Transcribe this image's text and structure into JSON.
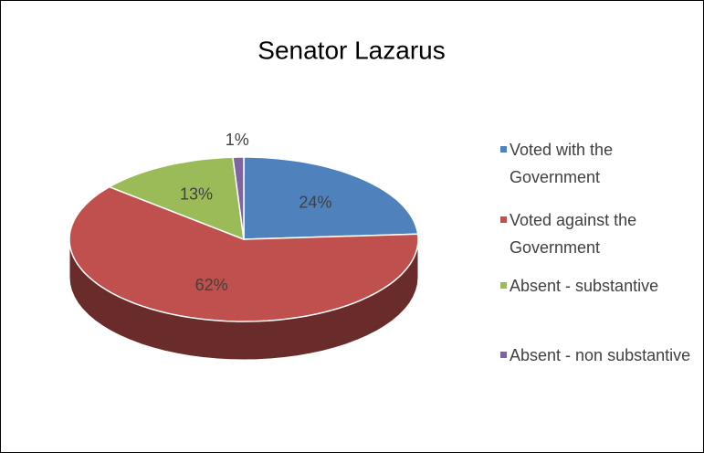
{
  "chart_data": {
    "type": "pie",
    "title": "Senator Lazarus",
    "categories": [
      "Voted with the Government",
      "Voted against the Government",
      "Absent - substantive",
      "Absent - non substantive"
    ],
    "values": [
      24,
      62,
      13,
      1
    ],
    "value_labels": [
      "24%",
      "62%",
      "13%",
      "1%"
    ],
    "colors": [
      "#4f81bd",
      "#c0504d",
      "#9bbb59",
      "#8064a2"
    ],
    "legend": "right"
  }
}
